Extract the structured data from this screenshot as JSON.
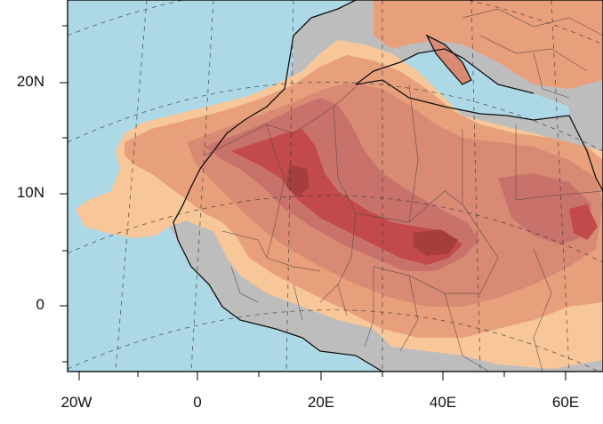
{
  "map": {
    "projection_note": "",
    "colors": {
      "ocean": "#add8e6",
      "land_no_data": "#bdbdbd",
      "level_1": "#f7c79a",
      "level_2": "#e8a07c",
      "level_3": "#d88a74",
      "level_4": "#c9726c",
      "level_5": "#c24a4a",
      "level_6": "#a63e3e",
      "coast": "#111111"
    },
    "lat_labels": [
      "20N",
      "10N",
      "0"
    ],
    "lon_labels": [
      "20W",
      "0",
      "20E",
      "40E",
      "60E"
    ]
  }
}
